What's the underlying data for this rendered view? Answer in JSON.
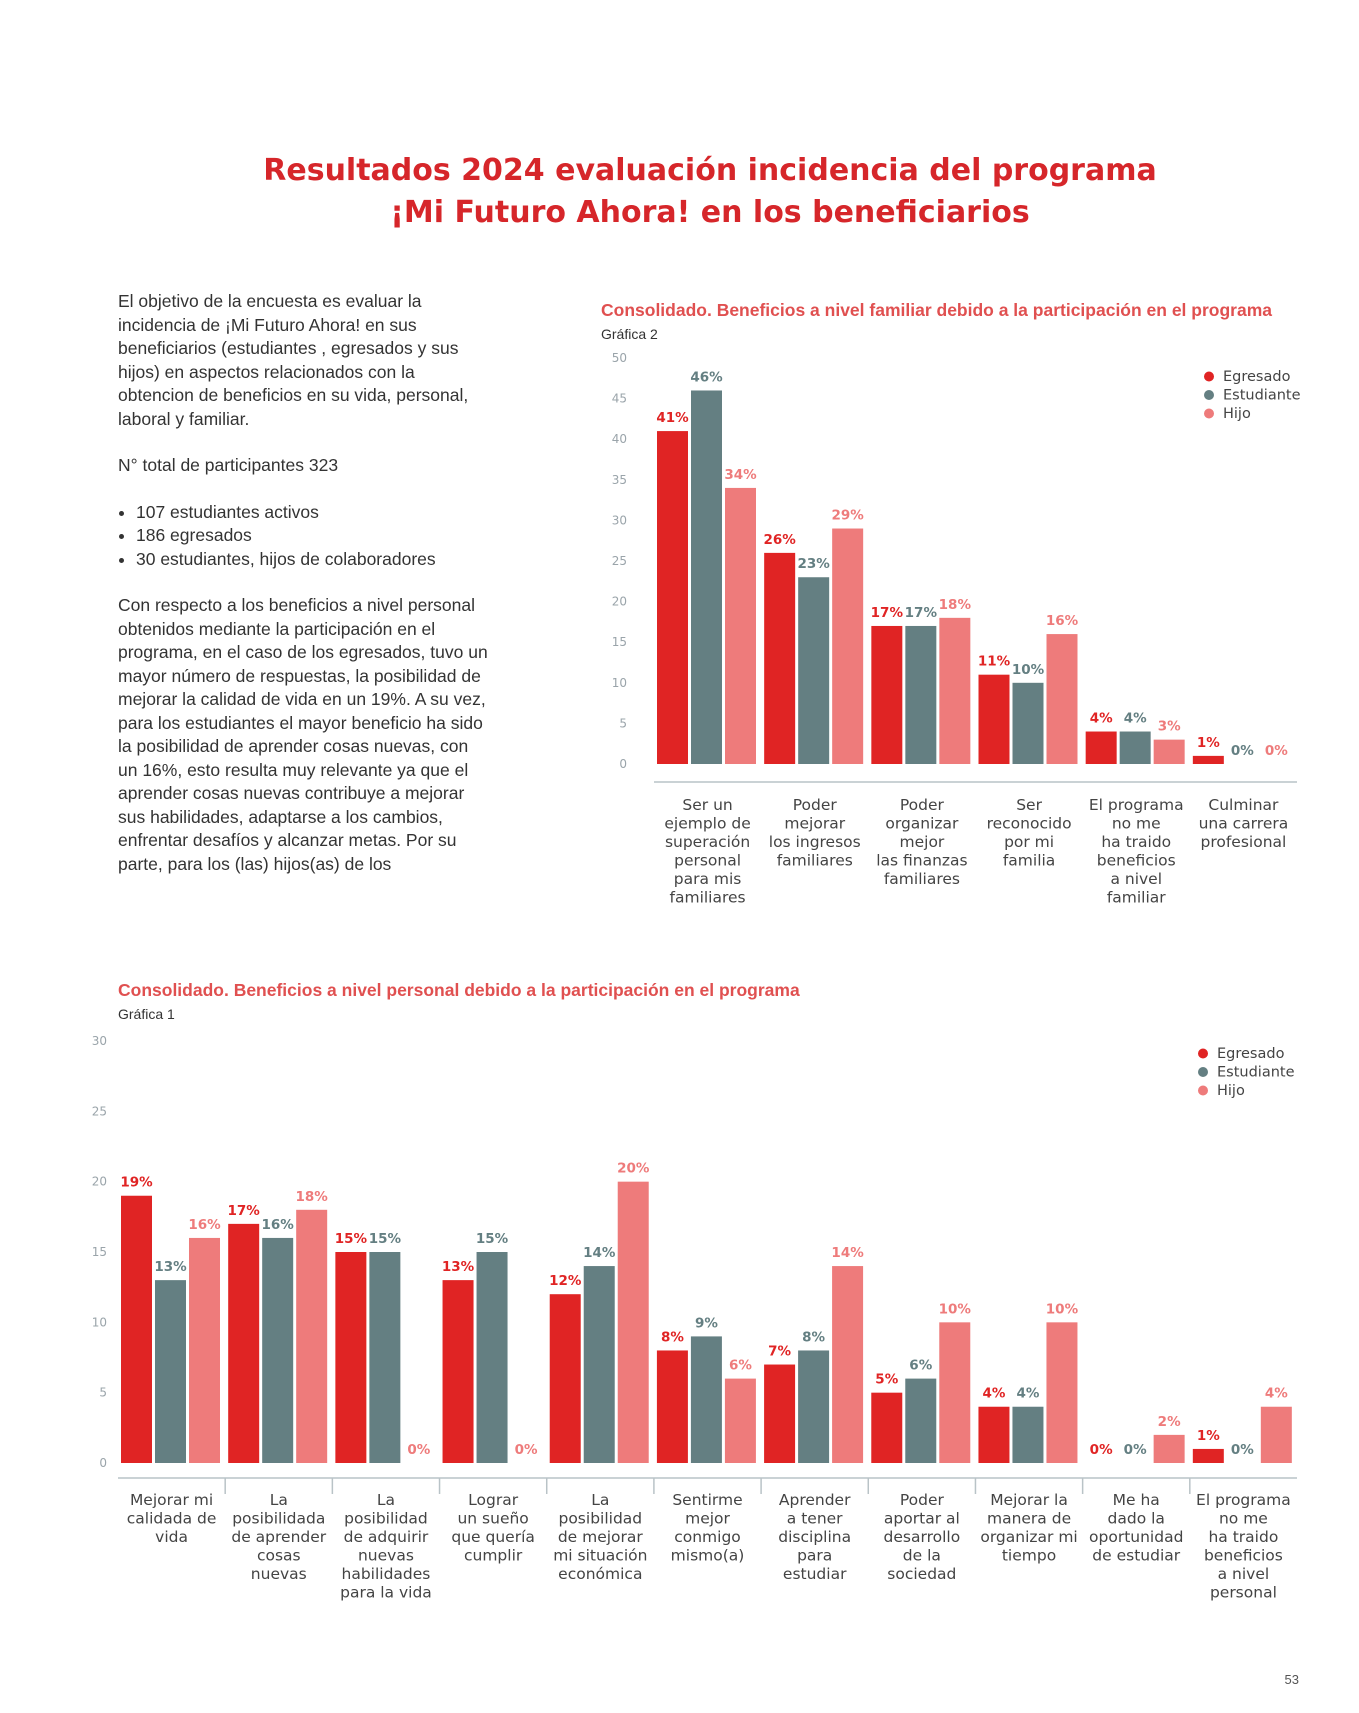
{
  "title": {
    "line1": "Resultados 2024 evaluación incidencia del programa",
    "line2": "¡Mi Futuro Ahora!  en los beneficiarios"
  },
  "intro": {
    "p1": "El objetivo de la encuesta es evaluar la incidencia de ¡Mi Futuro Ahora! en sus beneficiarios (estudiantes , egresados y sus hijos) en aspectos relacionados con la obtencion de beneficios en su vida, personal, laboral y familiar.",
    "p2": "N° total de participantes 323",
    "bullets": [
      "107 estudiantes activos",
      "186 egresados",
      "30 estudiantes, hijos de colaboradores"
    ],
    "p3": "Con respecto a los beneficios a nivel personal obtenidos mediante la participación en el programa, en el caso de los egresados, tuvo un mayor número de respuestas, la posibilidad de mejorar la calidad de vida en un 19%. A su vez, para los estudiantes el mayor beneficio ha sido la posibilidad de aprender cosas nuevas, con un 16%, esto resulta muy relevante ya que el aprender cosas nuevas contribuye a mejorar sus habilidades, adaptarse a los cambios, enfrentar desafíos y alcanzar metas. Por su parte, para los (las) hijos(as) de los"
  },
  "page_number": "53",
  "colors": {
    "egresado": "#e02424",
    "estudiante": "#647f82",
    "hijo": "#ee7b7b",
    "title": "#d6262a"
  },
  "chart_data": [
    {
      "type": "bar",
      "title": "Consolidado. Beneficios a nivel familiar debido a la participación en el programa",
      "subtitle": "Gráfica 2",
      "categories": [
        [
          "Ser un",
          "ejemplo de",
          "superación",
          "personal",
          "para mis",
          "familiares"
        ],
        [
          "Poder",
          "mejorar",
          "los ingresos",
          "familiares"
        ],
        [
          "Poder",
          "organizar",
          "mejor",
          "las finanzas",
          "familiares"
        ],
        [
          "Ser",
          "reconocido",
          "por mi",
          "familia"
        ],
        [
          "El programa",
          "no me",
          "ha traido",
          "beneficios",
          "a nivel",
          "familiar"
        ],
        [
          "Culminar",
          "una carrera",
          "profesional"
        ]
      ],
      "series": [
        {
          "name": "Egresado",
          "values": [
            41,
            26,
            17,
            11,
            4,
            1
          ],
          "labels": [
            "41%",
            "26%",
            "17%",
            "11%",
            "4%",
            "1%"
          ]
        },
        {
          "name": "Estudiante",
          "values": [
            46,
            23,
            17,
            10,
            4,
            0
          ],
          "labels": [
            "46%",
            "23%",
            "17%",
            "10%",
            "4%",
            "0%"
          ]
        },
        {
          "name": "Hijo",
          "values": [
            34,
            29,
            18,
            16,
            3,
            0
          ],
          "labels": [
            "34%",
            "29%",
            "18%",
            "16%",
            "3%",
            "0%"
          ]
        }
      ],
      "ylim": [
        0,
        50
      ],
      "yticks": [
        0,
        5,
        10,
        15,
        20,
        25,
        30,
        35,
        40,
        45,
        50
      ],
      "legend": "top-right",
      "grid": false
    },
    {
      "type": "bar",
      "title": "Consolidado. Beneficios a nivel personal debido a la participación en el programa",
      "subtitle": "Gráfica 1",
      "categories": [
        [
          "Mejorar mi",
          "calidada de",
          "vida"
        ],
        [
          "La",
          "posibilidada",
          "de aprender",
          "cosas",
          "nuevas"
        ],
        [
          "La",
          "posibilidad",
          "de adquirir",
          "nuevas",
          "habilidades",
          "para la vida"
        ],
        [
          "Lograr",
          "un sueño",
          "que quería",
          "cumplir"
        ],
        [
          "La",
          "posibilidad",
          "de mejorar",
          "mi situación",
          "económica"
        ],
        [
          "Sentirme",
          "mejor",
          "conmigo",
          "mismo(a)"
        ],
        [
          "Aprender",
          "a tener",
          "disciplina",
          "para",
          "estudiar"
        ],
        [
          "Poder",
          "aportar al",
          "desarrollo",
          "de la",
          "sociedad"
        ],
        [
          "Mejorar la",
          "manera de",
          "organizar mi",
          "tiempo"
        ],
        [
          "Me ha",
          "dado la",
          "oportunidad",
          "de estudiar"
        ],
        [
          "El programa",
          "no me",
          "ha traido",
          "beneficios",
          "a nivel",
          "personal"
        ]
      ],
      "series": [
        {
          "name": "Egresado",
          "values": [
            19,
            17,
            15,
            13,
            12,
            8,
            7,
            5,
            4,
            0,
            1
          ],
          "labels": [
            "19%",
            "17%",
            "15%",
            "13%",
            "12%",
            "8%",
            "7%",
            "5%",
            "4%",
            "0%",
            "1%"
          ]
        },
        {
          "name": "Estudiante",
          "values": [
            13,
            16,
            15,
            15,
            14,
            9,
            8,
            6,
            4,
            0,
            0
          ],
          "labels": [
            "13%",
            "16%",
            "15%",
            "15%",
            "14%",
            "9%",
            "8%",
            "6%",
            "4%",
            "0%",
            "0%"
          ]
        },
        {
          "name": "Hijo",
          "values": [
            16,
            18,
            0,
            0,
            20,
            6,
            14,
            10,
            10,
            2,
            4
          ],
          "labels": [
            "16%",
            "18%",
            "0%",
            "0%",
            "20%",
            "6%",
            "14%",
            "10%",
            "10%",
            "2%",
            "4%"
          ]
        }
      ],
      "ylim": [
        0,
        30
      ],
      "yticks": [
        0,
        5,
        10,
        15,
        20,
        25,
        30
      ],
      "legend": "top-right",
      "grid": false
    }
  ]
}
